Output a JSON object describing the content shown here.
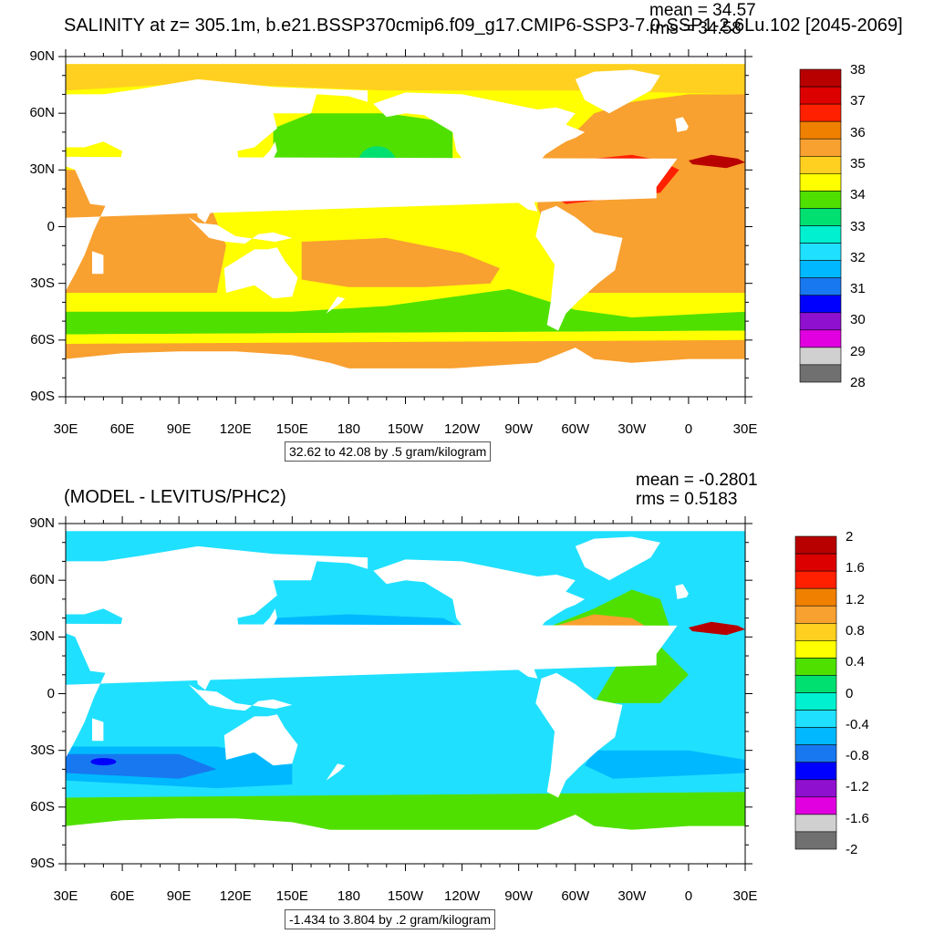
{
  "top_panel": {
    "title": "SALINITY at z= 305.1m, b.e21.BSSP370cmip6.f09_g17.CMIP6-SSP3-7.0-SSP1-2.6Lu.102 [2045-2069]",
    "mean_label": "mean = 34.57",
    "rms_label": "rms = 34.58",
    "contour_info": "32.62 to 42.08 by .5 gram/kilogram",
    "colorbar": {
      "labels": [
        "38",
        "37",
        "36",
        "35",
        "34",
        "33",
        "32",
        "31",
        "30",
        "29",
        "28"
      ],
      "colors": [
        "#b80000",
        "#dd0000",
        "#ff2000",
        "#f08000",
        "#f8a030",
        "#ffd020",
        "#ffff00",
        "#50e000",
        "#00e070",
        "#00f0d0",
        "#20e0ff",
        "#00b8ff",
        "#1878f0",
        "#0000ff",
        "#9010d0",
        "#e000e0",
        "#d0d0d0",
        "#707070"
      ]
    }
  },
  "bottom_panel": {
    "title": "(MODEL - LEVITUS/PHC2)",
    "mean_label": "mean = -0.2801",
    "rms_label": "rms = 0.5183",
    "contour_info": "-1.434 to 3.804 by .2 gram/kilogram",
    "colorbar": {
      "labels": [
        "2",
        "1.6",
        "1.2",
        "0.8",
        "0.4",
        "0",
        "-0.4",
        "-0.8",
        "-1.2",
        "-1.6",
        "-2"
      ],
      "colors": [
        "#b80000",
        "#dd0000",
        "#ff2000",
        "#f08000",
        "#f8a030",
        "#ffd020",
        "#ffff00",
        "#50e000",
        "#00e070",
        "#00f0d0",
        "#20e0ff",
        "#00b8ff",
        "#1878f0",
        "#0000ff",
        "#9010d0",
        "#e000e0",
        "#d0d0d0",
        "#707070"
      ]
    }
  },
  "axes": {
    "lat_labels": [
      "90N",
      "60N",
      "30N",
      "0",
      "30S",
      "60S",
      "90S"
    ],
    "lon_labels": [
      "30E",
      "60E",
      "90E",
      "120E",
      "150E",
      "180",
      "150W",
      "120W",
      "90W",
      "60W",
      "30W",
      "0",
      "30E"
    ]
  },
  "colors": {
    "land": "#ffffff",
    "salinity_regions": {
      "pacific": "#ffff00",
      "north_pacific_low": "#50e000",
      "north_pacific_min": "#00e070",
      "atlantic_subtropical": "#ff2000",
      "atlantic_high": "#f8a030",
      "indian": "#f8a030",
      "southern_band": "#50e000",
      "antarctic": "#f8a030",
      "arctic": "#ffd020"
    },
    "anomaly_regions": {
      "background": "#20e0ff",
      "negative": "#00b8ff",
      "strong_negative": "#1878f0",
      "positive": "#50e000",
      "atlantic_positive": "#f8a030",
      "extreme_positive": "#b80000",
      "extreme_negative": "#0000ff"
    }
  }
}
